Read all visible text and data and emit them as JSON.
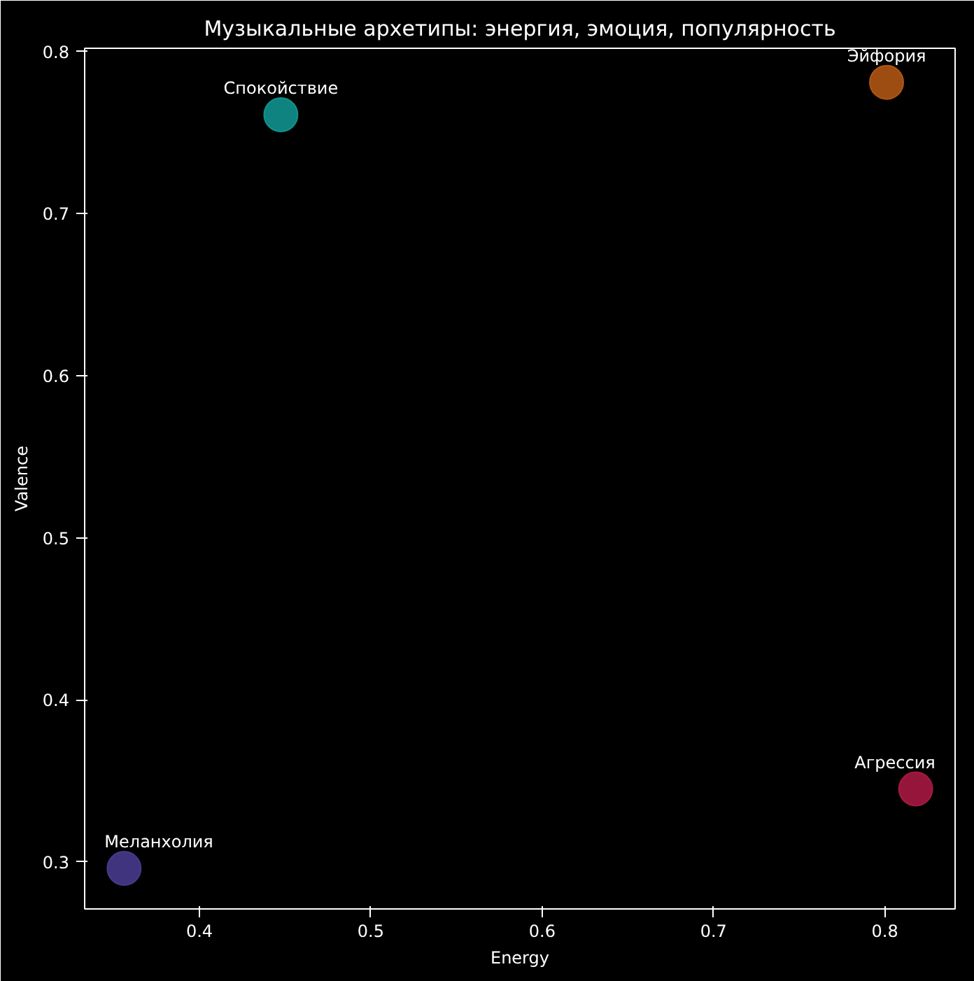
{
  "chart_data": {
    "type": "scatter",
    "title": "Музыкальные архетипы: энергия, эмоция, популярность",
    "xlabel": "Energy",
    "ylabel": "Valence",
    "x": [
      0.4475,
      0.801,
      0.818,
      0.356
    ],
    "values": [
      0.761,
      0.781,
      0.345,
      0.296
    ],
    "colors": [
      "#119a95",
      "#b85a14",
      "#b01a45",
      "#4a3d93"
    ],
    "annotations": [
      {
        "text": "Спокойствие",
        "x": 0.4475,
        "y": 0.761
      },
      {
        "text": "Эйфория",
        "x": 0.801,
        "y": 0.781
      },
      {
        "text": "Агрессия",
        "x": 0.818,
        "y": 0.345
      },
      {
        "text": "Меланхолия",
        "x": 0.356,
        "y": 0.296
      }
    ],
    "xlim": [
      0.333,
      0.841
    ],
    "ylim": [
      0.271,
      0.802
    ],
    "xticks": [
      0.4,
      0.5,
      0.6,
      0.7,
      0.8
    ],
    "yticks": [
      0.3,
      0.4,
      0.5,
      0.6,
      0.7,
      0.8
    ],
    "marker": "circle",
    "grid": false
  }
}
